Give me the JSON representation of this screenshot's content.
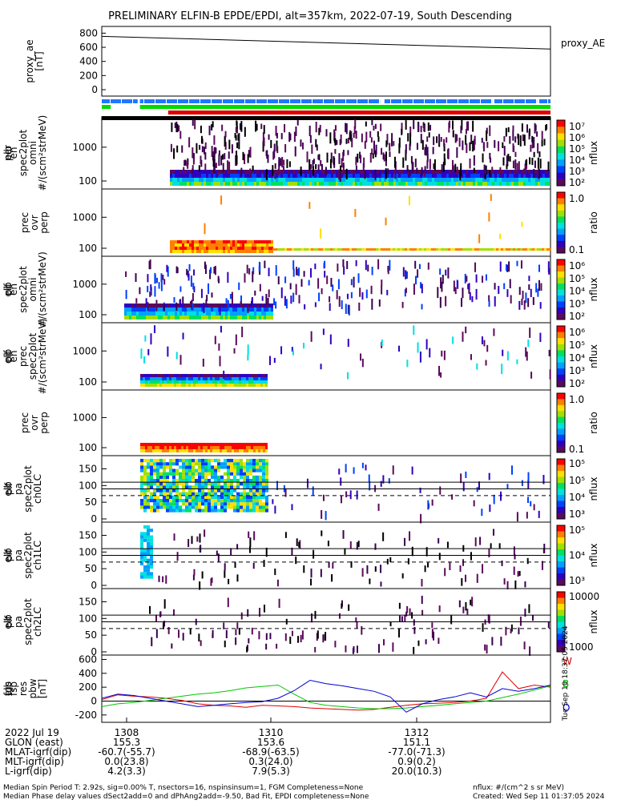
{
  "title": "PRELIMINARY ELFIN-B EPDE/EPDI, alt=357km, 2022-07-19, South Descending",
  "side_note": "Tue Sep 10 18:37:05 2024",
  "colors": {
    "blue": "#1e78ff",
    "green": "#00dc00",
    "red": "#e00000",
    "black": "#000000"
  },
  "chart_data": [
    {
      "id": "proxy_ae",
      "type": "line",
      "ylabel": "proxy_ae\n[nT]",
      "right_label": "proxy_AE",
      "yticks": [
        "800",
        "600",
        "400",
        "200",
        "0"
      ],
      "ylim": [
        0,
        850
      ],
      "x": [
        0,
        1
      ],
      "values": [
        755,
        575
      ]
    },
    {
      "id": "status_bars",
      "type": "bar",
      "rows": [
        {
          "name": "blue",
          "color": "#1e78ff",
          "segments": [
            [
              0.0,
              0.08
            ],
            [
              0.085,
              0.62
            ],
            [
              0.63,
              0.87
            ],
            [
              0.875,
              0.97
            ],
            [
              0.975,
              1.0
            ]
          ]
        },
        {
          "name": "green",
          "color": "#00dc00",
          "segments": [
            [
              0.0,
              0.02
            ],
            [
              0.085,
              1.0
            ]
          ]
        },
        {
          "name": "red",
          "color": "#e00000",
          "segments": [
            [
              0.148,
              1.0
            ]
          ]
        }
      ]
    },
    {
      "id": "ele_en_spec",
      "type": "heatmap",
      "ylabel": "elb\nper\nen\nspec2plot\nomni\n#/(scm²strMeV)",
      "yticks": [
        "1000",
        "100"
      ],
      "colorbar": {
        "label": "nflux",
        "ticks": [
          "10⁷",
          "10⁶",
          "10⁵",
          "10⁴",
          "10³",
          "10²"
        ]
      }
    },
    {
      "id": "ele_prec_ratio",
      "type": "heatmap",
      "ylabel": "prec\novr\nperp",
      "yticks": [
        "1000",
        "100"
      ],
      "colorbar": {
        "label": "ratio",
        "ticks": [
          "1.0",
          "0.1"
        ]
      }
    },
    {
      "id": "ele_en_spec_omni",
      "type": "heatmap",
      "ylabel": "elb\npif\nen\nspec2plot\nomni\n#/(scm²strMeV)",
      "yticks": [
        "1000",
        "100"
      ],
      "colorbar": {
        "label": "nflux",
        "ticks": [
          "10⁶",
          "10⁵",
          "10⁴",
          "10³",
          "10²"
        ]
      }
    },
    {
      "id": "ele_en_spec_prec",
      "type": "heatmap",
      "ylabel": "elb\npif\nen\nprec\nspec2plot\n#/(scm²strMeV)",
      "yticks": [
        "1000",
        "100"
      ],
      "colorbar": {
        "label": "nflux",
        "ticks": [
          "10⁶",
          "10⁵",
          "10⁴",
          "10³",
          "10²"
        ]
      }
    },
    {
      "id": "ion_prec_ratio",
      "type": "heatmap",
      "ylabel": "prec\novr\nperp",
      "yticks": [
        "1000",
        "100"
      ],
      "colorbar": {
        "label": "ratio",
        "ticks": [
          "1.0",
          "0.1"
        ]
      }
    },
    {
      "id": "pa_ch0",
      "type": "heatmap",
      "ylabel": "elb\npif\npa\nspec2plot\nch0LC",
      "yticks": [
        "150",
        "100",
        "50",
        "0"
      ],
      "ylim": [
        0,
        180
      ],
      "colorbar": {
        "label": "nflux",
        "ticks": [
          "10⁵",
          "10⁵",
          "10⁴",
          "10³"
        ]
      }
    },
    {
      "id": "pa_ch1",
      "type": "heatmap",
      "ylabel": "elb\npif\npa\nspec2plot\nch1LC",
      "yticks": [
        "150",
        "100",
        "50",
        "0"
      ],
      "ylim": [
        0,
        180
      ],
      "colorbar": {
        "label": "nflux",
        "ticks": [
          "10⁵",
          "10⁴",
          "10³"
        ]
      }
    },
    {
      "id": "pa_ch2",
      "type": "heatmap",
      "ylabel": "elb\npif\npa\nspec2plot\nch2LC",
      "yticks": [
        "150",
        "100",
        "50",
        "0"
      ],
      "ylim": [
        0,
        180
      ],
      "colorbar": {
        "label": "nflux",
        "ticks": [
          "10000",
          "1000"
        ]
      }
    },
    {
      "id": "fgs",
      "type": "line",
      "ylabel": "elb\nfgs\nfsp\nres\npbw\n[nT]",
      "yticks": [
        "600",
        "400",
        "200",
        "0",
        "-200"
      ],
      "ylim": [
        -260,
        640
      ],
      "legend": [
        "W",
        "B",
        "O"
      ],
      "series": [
        {
          "name": "W",
          "color": "#e00000",
          "values": [
            20,
            90,
            70,
            60,
            40,
            10,
            -40,
            -60,
            -70,
            -90,
            -60,
            -70,
            -80,
            -100,
            -110,
            -120,
            -130,
            -120,
            -90,
            -60,
            -40,
            -30,
            -20,
            0,
            40,
            420,
            180,
            230,
            200
          ]
        },
        {
          "name": "B",
          "color": "#00c800",
          "values": [
            -80,
            -40,
            -20,
            10,
            40,
            70,
            100,
            120,
            150,
            190,
            210,
            230,
            100,
            -20,
            -60,
            -80,
            -100,
            -110,
            -110,
            -100,
            -80,
            -60,
            -40,
            -20,
            0,
            50,
            100,
            160,
            220
          ]
        },
        {
          "name": "O",
          "color": "#0000d0",
          "values": [
            40,
            100,
            80,
            40,
            0,
            -40,
            -80,
            -60,
            -40,
            -20,
            -10,
            40,
            150,
            300,
            250,
            220,
            180,
            140,
            60,
            -160,
            -40,
            20,
            60,
            120,
            60,
            180,
            140,
            180,
            230
          ]
        }
      ]
    }
  ],
  "xaxis": {
    "ticks": [
      "1308",
      "1310",
      "1312"
    ],
    "rows": [
      {
        "label": "2022 Jul 19",
        "values": [
          "",
          "",
          ""
        ]
      },
      {
        "label": "GLON (east)",
        "values": [
          "155.3",
          "153.6",
          "151.1"
        ]
      },
      {
        "label": "MLAT-igrf(dip)",
        "values": [
          "-60.7(-55.7)",
          "-68.9(-63.5)",
          "-77.0(-71.3)"
        ]
      },
      {
        "label": "MLT-igrf(dip)",
        "values": [
          "0.0(23.8)",
          "0.3(24.0)",
          "0.9(0.2)"
        ]
      },
      {
        "label": "L-igrf(dip)",
        "values": [
          "4.2(3.3)",
          "7.9(5.3)",
          "20.0(10.3)"
        ]
      }
    ]
  },
  "footer": {
    "line1_left": "Median Spin Period T: 2.92s, sig=0.00% T, nsectors=16, nspinsinsum=1, FGM Completeness=None",
    "line2_left": "Median Phase delay values dSect2add=0 and dPhAng2add=-9.50, Bad Fit, EPDI completeness=None",
    "line1_right": "nflux: #/(cm^2 s sr MeV)",
    "line2_right": "Created: Wed Sep 11 01:37:05 2024"
  }
}
